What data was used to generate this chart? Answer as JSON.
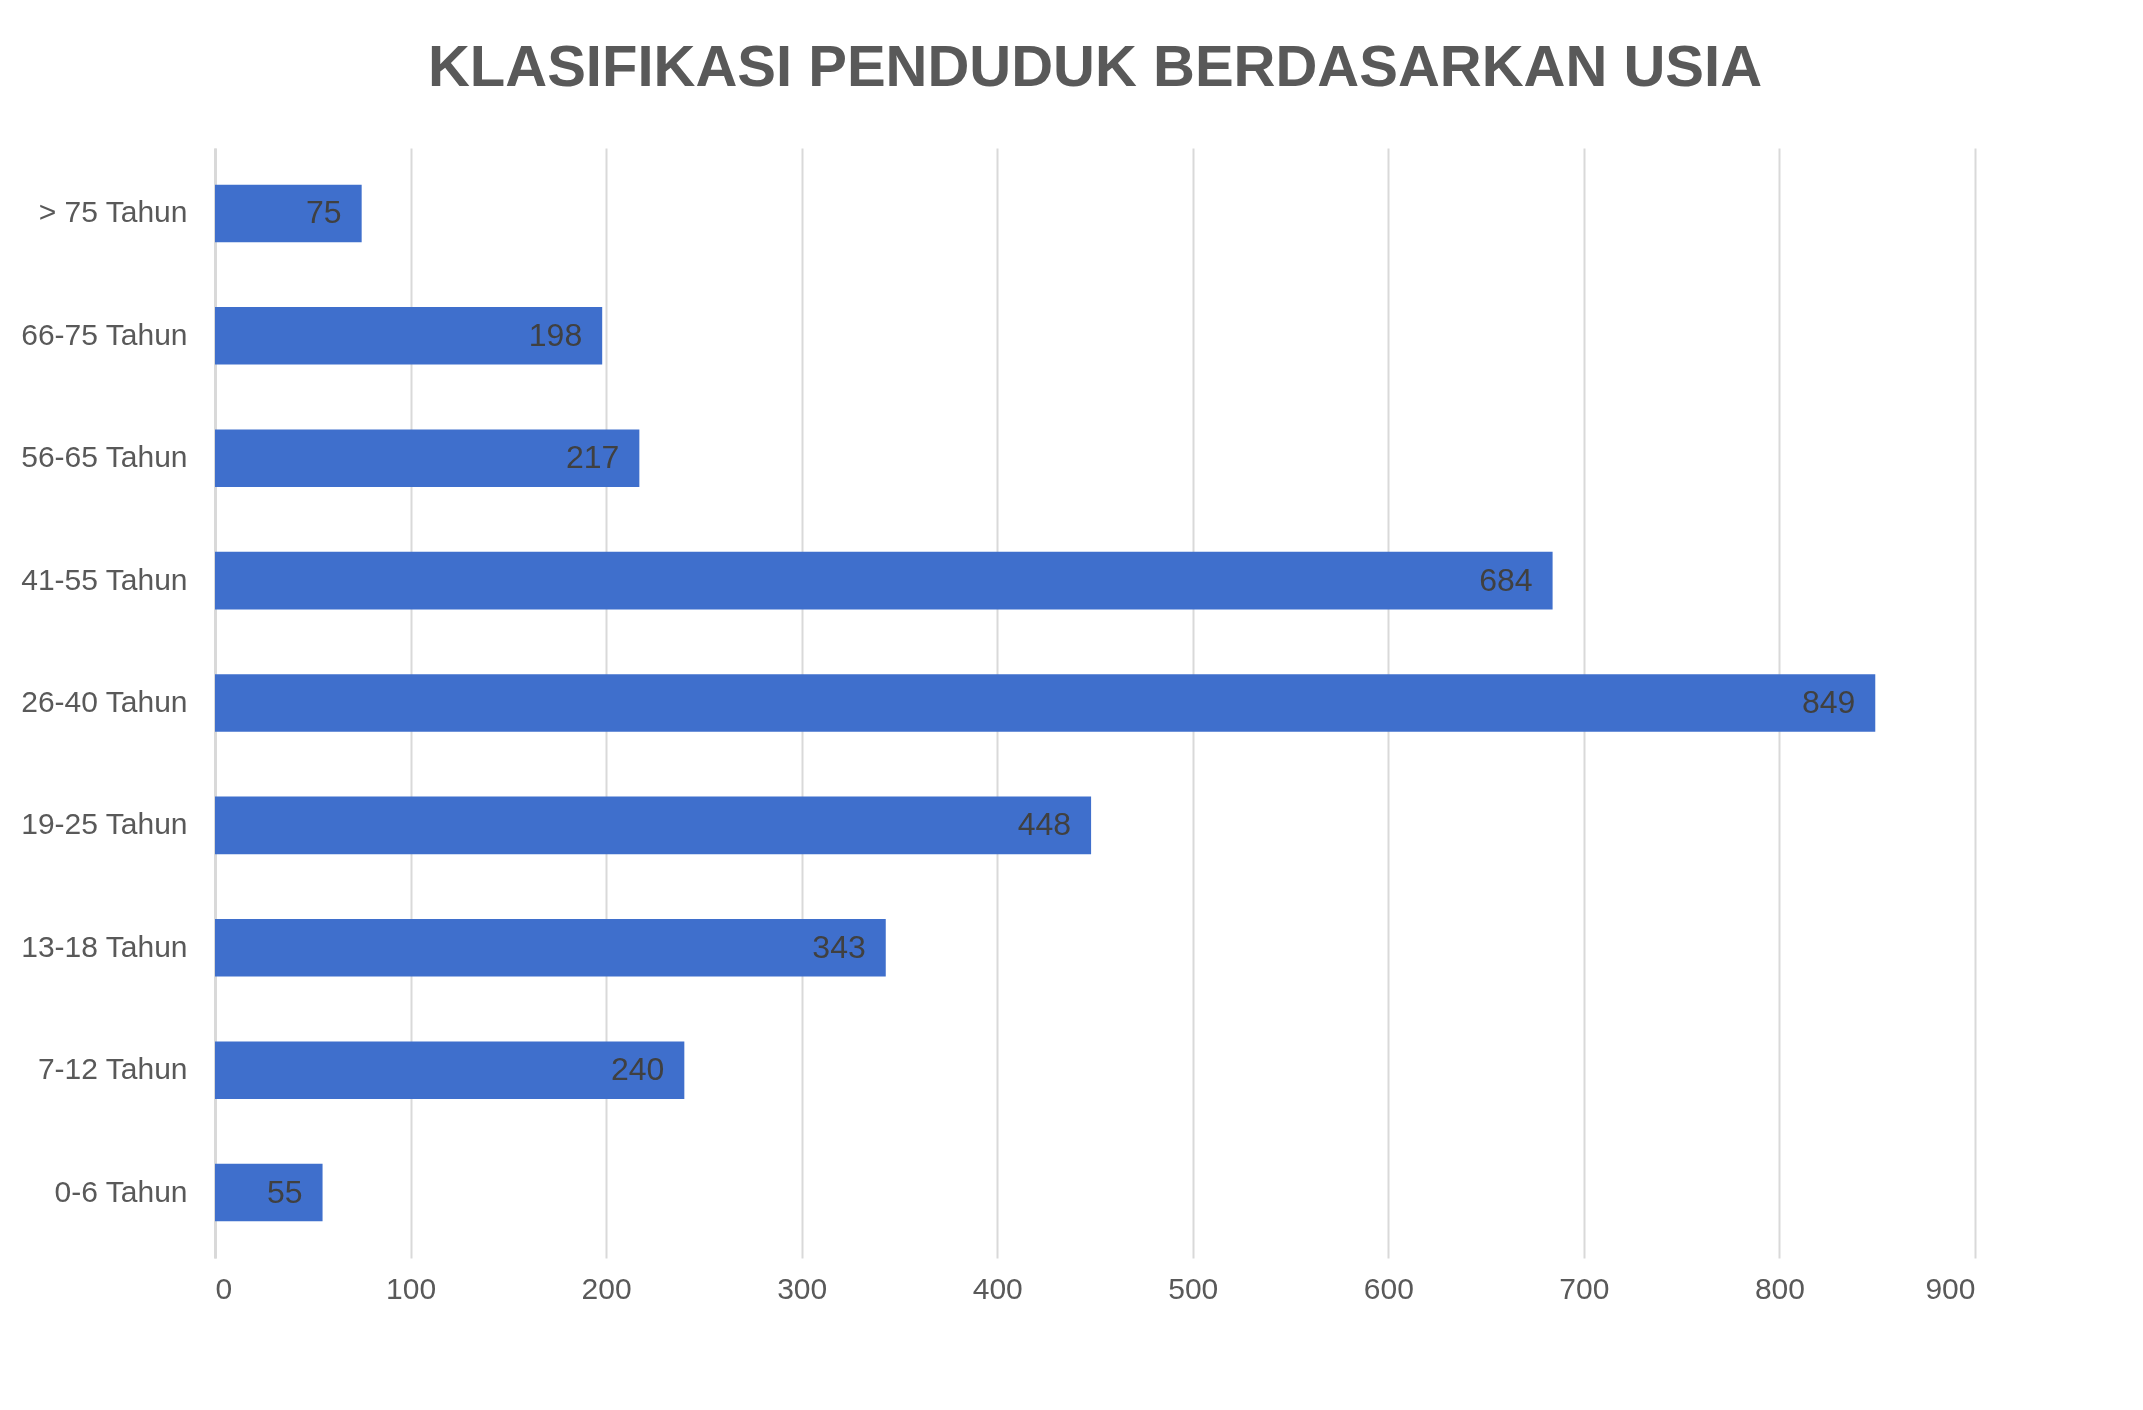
{
  "chart_data": {
    "type": "bar",
    "orientation": "horizontal",
    "title": "KLASIFIKASI PENDUDUK BERDASARKAN USIA",
    "categories": [
      "> 75 Tahun",
      "66-75 Tahun",
      "56-65 Tahun",
      "41-55 Tahun",
      "26-40 Tahun",
      "19-25 Tahun",
      "13-18 Tahun",
      "7-12 Tahun",
      "0-6 Tahun"
    ],
    "values": [
      75,
      198,
      217,
      684,
      849,
      448,
      343,
      240,
      55
    ],
    "color": "#3f6fcc",
    "xlim": [
      0,
      900
    ],
    "xticks": [
      0,
      100,
      200,
      300,
      400,
      500,
      600,
      700,
      800,
      900
    ],
    "grid": "x",
    "data_labels": true
  }
}
